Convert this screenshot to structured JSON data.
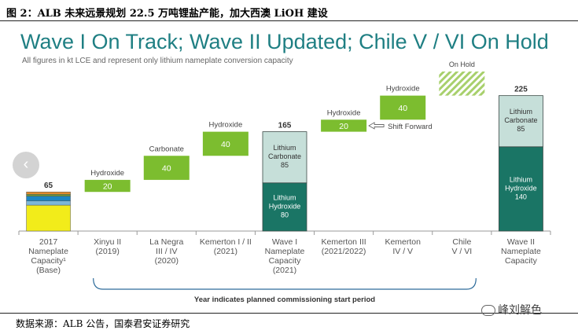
{
  "figure_caption": "图 2：ALB 未来远景规划 22.5 万吨锂盐产能，加大西澳 LiOH 建设",
  "source_note": "数据来源：ALB 公告，国泰君安证券研究",
  "watermark_text": "峰刘解色",
  "nav": {
    "prev_icon": "chevron-left-icon"
  },
  "colors": {
    "title": "#1f7f83",
    "lime": "#7cbd2f",
    "teal_dark": "#1a7565",
    "teal_light": "#c6dfd9",
    "axis": "#9a9a9a",
    "bracket": "#2d6b9a",
    "onhold": "#b9d98a"
  },
  "chart_data": {
    "type": "bar",
    "title": "Wave I On Track; Wave II Updated; Chile V / VI On Hold",
    "subtitle": "All figures in kt LCE and represent only lithium nameplate conversion capacity",
    "unit": "kt LCE",
    "ylim": [
      0,
      225
    ],
    "categories": [
      {
        "label": [
          "2017",
          "Nameplate",
          "Capacity¹",
          "(Base)"
        ]
      },
      {
        "label": [
          "Xinyu II",
          "(2019)"
        ]
      },
      {
        "label": [
          "La Negra",
          "III / IV",
          "(2020)"
        ]
      },
      {
        "label": [
          "Kemerton I / II",
          "(2021)"
        ]
      },
      {
        "label": [
          "Wave I",
          "Nameplate",
          "Capacity",
          "(2021)"
        ]
      },
      {
        "label": [
          "Kemerton III",
          "(2021/2022)"
        ]
      },
      {
        "label": [
          "Kemerton",
          "IV / V"
        ]
      },
      {
        "label": [
          "Chile",
          "V / VI"
        ]
      },
      {
        "label": [
          "Wave II",
          "Nameplate",
          "Capacity"
        ]
      }
    ],
    "bars": [
      {
        "kind": "stack_base",
        "total": 65,
        "total_label": "65",
        "segments": [
          {
            "value": 43,
            "color": "#f2ec1a"
          },
          {
            "value": 7,
            "color": "#7cb6d8"
          },
          {
            "value": 8,
            "color": "#1b86c4"
          },
          {
            "value": 3,
            "color": "#6b9b3a"
          },
          {
            "value": 4,
            "color": "#e08a2c"
          }
        ]
      },
      {
        "kind": "float",
        "start": 65,
        "value": 20,
        "value_label": "20",
        "type_label": "Hydroxide",
        "color": "#7cbd2f"
      },
      {
        "kind": "float",
        "start": 85,
        "value": 40,
        "value_label": "40",
        "type_label": "Carbonate",
        "color": "#7cbd2f"
      },
      {
        "kind": "float",
        "start": 125,
        "value": 40,
        "value_label": "40",
        "type_label": "Hydroxide",
        "color": "#7cbd2f"
      },
      {
        "kind": "stack_total",
        "total": 165,
        "total_label": "165",
        "segments": [
          {
            "value": 80,
            "label": [
              "Lithium",
              "Hydroxide",
              "80"
            ],
            "color": "#1a7565",
            "text_color": "#ffffff"
          },
          {
            "value": 85,
            "label": [
              "Lithium",
              "Carbonate",
              "85"
            ],
            "color": "#c6dfd9",
            "text_color": "#333333"
          }
        ]
      },
      {
        "kind": "float",
        "start": 165,
        "value": 20,
        "value_label": "20",
        "type_label": "Hydroxide",
        "color": "#7cbd2f",
        "annotation": "Shift Forward"
      },
      {
        "kind": "float",
        "start": 185,
        "value": 40,
        "value_label": "40",
        "type_label": "Hydroxide",
        "color": "#7cbd2f"
      },
      {
        "kind": "hatched",
        "start": 225,
        "value": 40,
        "type_label": "On Hold",
        "color": "#b9d98a"
      },
      {
        "kind": "stack_total",
        "total": 225,
        "total_label": "225",
        "segments": [
          {
            "value": 140,
            "label": [
              "Lithium",
              "Hydroxide",
              "140"
            ],
            "color": "#1a7565",
            "text_color": "#ffffff"
          },
          {
            "value": 85,
            "label": [
              "Lithium",
              "Carbonate",
              "85"
            ],
            "color": "#c6dfd9",
            "text_color": "#333333"
          }
        ]
      }
    ],
    "bracket_note": "Year indicates planned commissioning start period"
  }
}
